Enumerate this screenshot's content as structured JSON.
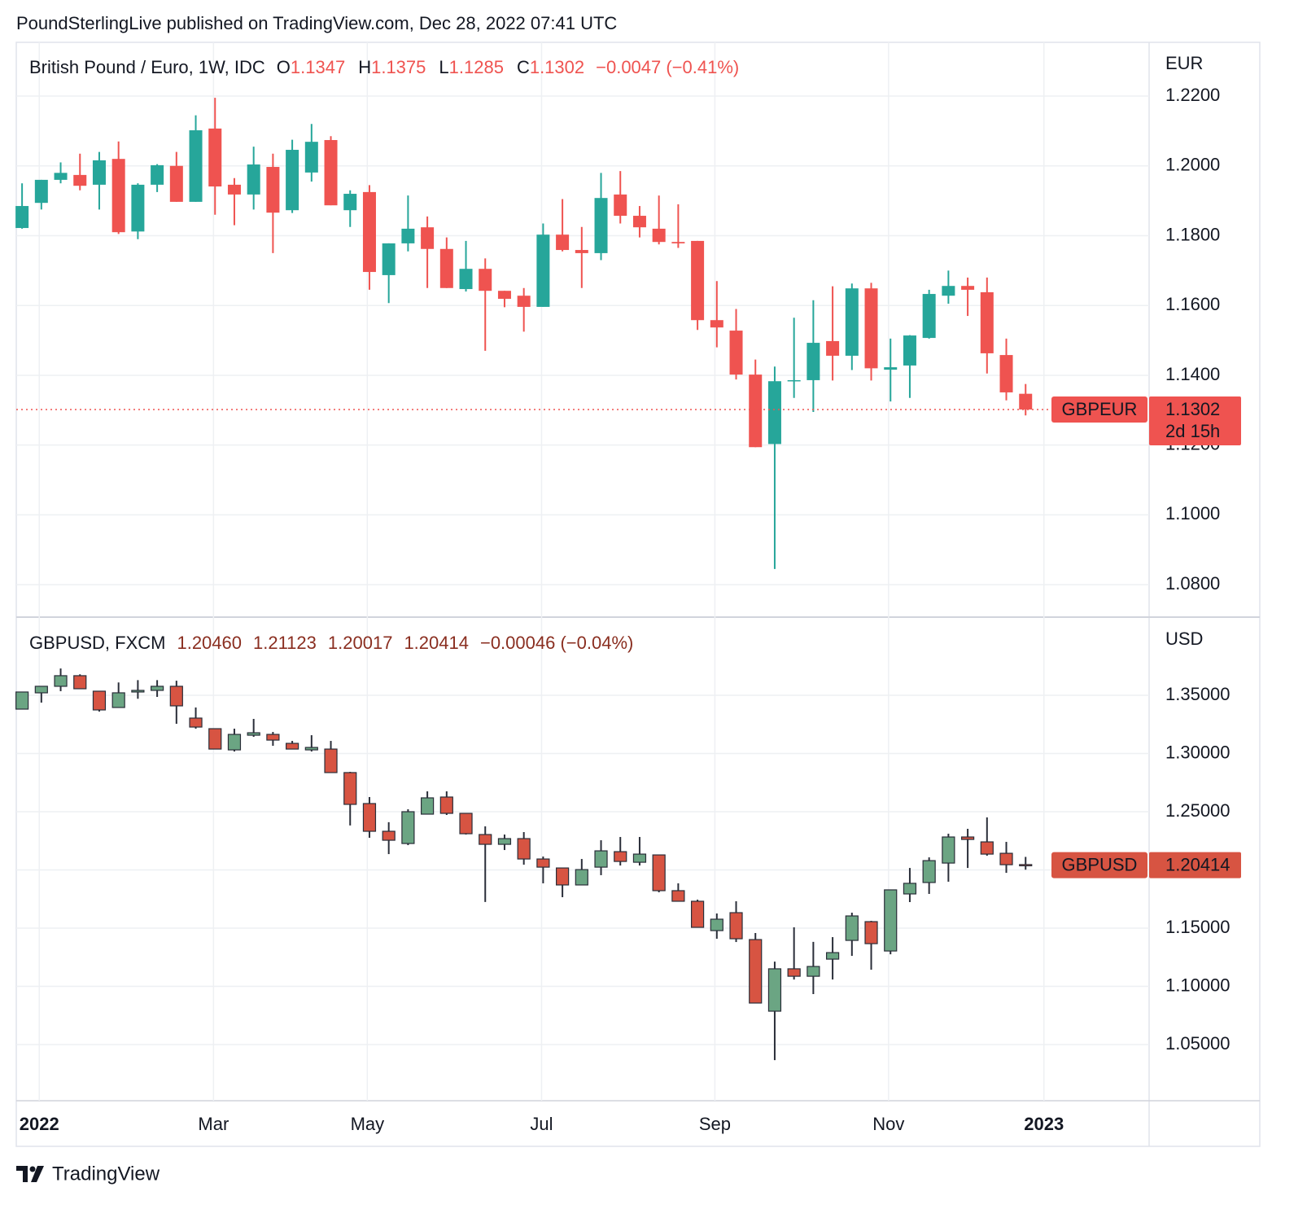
{
  "published": "PoundSterlingLive published on TradingView.com, Dec 28, 2022 07:41 UTC",
  "brand": "TradingView",
  "x_axis": {
    "xlim": [
      -0.3,
      58.4
    ],
    "xticks": [
      {
        "value": 0.89,
        "label": "2022"
      },
      {
        "value": 9.92,
        "label": "Mar"
      },
      {
        "value": 17.89,
        "label": "May"
      },
      {
        "value": 26.92,
        "label": "Jul"
      },
      {
        "value": 35.9,
        "label": "Sep"
      },
      {
        "value": 44.9,
        "label": "Nov"
      },
      {
        "value": 52.95,
        "label": "2023"
      }
    ],
    "bold_labels": [
      "2022",
      "2023"
    ]
  },
  "chart_data": [
    {
      "type": "candlestick",
      "title": "British Pound / Euro, 1W, IDC",
      "unit": "EUR",
      "header_prefixes": [
        "O",
        "H",
        "L",
        "C"
      ],
      "header_values": [
        "1.1347",
        "1.1375",
        "1.1285",
        "1.1302"
      ],
      "change_label": "−0.0047 (−0.41%)",
      "up_color": "#26a69a",
      "down_color": "#ef5350",
      "border": false,
      "last_price": {
        "symbol": "GBPEUR",
        "value_label": "1.1302",
        "countdown": "2d 15h"
      },
      "ylim": [
        1.0707,
        1.2354
      ],
      "yticks": [
        {
          "value": 1.08,
          "label": "1.0800"
        },
        {
          "value": 1.1,
          "label": "1.1000"
        },
        {
          "value": 1.12,
          "label": "1.1200"
        },
        {
          "value": 1.14,
          "label": "1.1400"
        },
        {
          "value": 1.16,
          "label": "1.1600"
        },
        {
          "value": 1.18,
          "label": "1.1800"
        },
        {
          "value": 1.2,
          "label": "1.2000"
        },
        {
          "value": 1.22,
          "label": "1.2200"
        }
      ],
      "open": [
        1.1822,
        1.1894,
        1.196,
        1.1974,
        1.1946,
        1.202,
        1.1812,
        1.1946,
        1.2,
        1.1897,
        1.2107,
        1.1946,
        1.1918,
        1.1997,
        1.1873,
        1.1981,
        1.2074,
        1.1873,
        1.1925,
        1.1687,
        1.1778,
        1.1824,
        1.1762,
        1.1647,
        1.1705,
        1.1642,
        1.1628,
        1.1596,
        1.1803,
        1.1759,
        1.175,
        1.1918,
        1.1857,
        1.182,
        1.1782,
        1.1785,
        1.1558,
        1.1528,
        1.1402,
        1.1203,
        1.1383,
        1.1386,
        1.1498,
        1.1456,
        1.1649,
        1.1416,
        1.1428,
        1.1507,
        1.1628,
        1.1656,
        1.1638,
        1.1458,
        1.1347
      ],
      "high": [
        1.195,
        1.196,
        1.201,
        1.2035,
        1.204,
        1.207,
        1.195,
        1.2005,
        1.204,
        1.2145,
        1.2195,
        1.1965,
        1.2055,
        1.2035,
        1.2075,
        1.212,
        1.2085,
        1.193,
        1.1945,
        1.1778,
        1.1915,
        1.1855,
        1.1795,
        1.1785,
        1.1735,
        1.1642,
        1.165,
        1.1835,
        1.1905,
        1.1825,
        1.198,
        1.1985,
        1.1885,
        1.1915,
        1.189,
        1.1785,
        1.167,
        1.159,
        1.1445,
        1.1425,
        1.1565,
        1.1615,
        1.1655,
        1.1663,
        1.1665,
        1.1505,
        1.1515,
        1.1645,
        1.17,
        1.168,
        1.168,
        1.1505,
        1.1375
      ],
      "low": [
        1.182,
        1.1875,
        1.195,
        1.193,
        1.1875,
        1.1805,
        1.179,
        1.1925,
        1.1897,
        1.1897,
        1.186,
        1.183,
        1.1875,
        1.175,
        1.1865,
        1.1955,
        1.1887,
        1.1825,
        1.1645,
        1.1607,
        1.1755,
        1.165,
        1.165,
        1.164,
        1.147,
        1.1595,
        1.1525,
        1.1596,
        1.1755,
        1.165,
        1.173,
        1.1835,
        1.1795,
        1.1775,
        1.1765,
        1.153,
        1.148,
        1.1388,
        1.1194,
        1.0845,
        1.1335,
        1.1295,
        1.1385,
        1.1415,
        1.1385,
        1.1325,
        1.1335,
        1.1505,
        1.1605,
        1.157,
        1.1405,
        1.1328,
        1.1285
      ],
      "close": [
        1.1885,
        1.196,
        1.198,
        1.1943,
        1.2016,
        1.181,
        1.1946,
        1.2002,
        1.1897,
        1.2102,
        1.1941,
        1.1918,
        1.2004,
        1.1866,
        1.2046,
        1.2069,
        1.1887,
        1.192,
        1.1696,
        1.1778,
        1.182,
        1.1762,
        1.165,
        1.1705,
        1.1642,
        1.1619,
        1.1596,
        1.1803,
        1.1759,
        1.175,
        1.1908,
        1.1857,
        1.1824,
        1.1782,
        1.1778,
        1.1558,
        1.1537,
        1.1402,
        1.1194,
        1.1383,
        1.1386,
        1.1493,
        1.1456,
        1.1649,
        1.142,
        1.1423,
        1.1514,
        1.1633,
        1.1656,
        1.1645,
        1.1463,
        1.1351,
        1.1302
      ]
    },
    {
      "type": "candlestick",
      "title": "GBPUSD, FXCM",
      "unit": "USD",
      "header_values": [
        "1.20460",
        "1.21123",
        "1.20017",
        "1.20414"
      ],
      "change_label": "−0.00046 (−0.04%)",
      "up_color": "#6ba583",
      "down_color": "#d75442",
      "border": true,
      "last_price": {
        "symbol": "GBPUSD",
        "value_label": "1.20414"
      },
      "ylim": [
        1.0018,
        1.4171
      ],
      "yticks": [
        {
          "value": 1.05,
          "label": "1.05000"
        },
        {
          "value": 1.1,
          "label": "1.10000"
        },
        {
          "value": 1.15,
          "label": "1.15000"
        },
        {
          "value": 1.2,
          "label": "1.20000"
        },
        {
          "value": 1.25,
          "label": "1.25000"
        },
        {
          "value": 1.3,
          "label": "1.30000"
        },
        {
          "value": 1.35,
          "label": "1.35000"
        }
      ],
      "open": [
        1.3381,
        1.3521,
        1.3577,
        1.3668,
        1.3535,
        1.3395,
        1.3528,
        1.3542,
        1.3577,
        1.3304,
        1.3213,
        1.3031,
        1.3157,
        1.3164,
        1.3087,
        1.3031,
        1.3038,
        1.2836,
        1.257,
        1.2332,
        1.2227,
        1.2479,
        1.2626,
        1.2486,
        1.2304,
        1.222,
        1.2269,
        1.2094,
        1.2017,
        1.1871,
        1.2024,
        1.2157,
        1.2066,
        1.2129,
        1.1822,
        1.1731,
        1.1479,
        1.1633,
        1.1402,
        1.0787,
        1.1151,
        1.1087,
        1.1234,
        1.1395,
        1.1556,
        1.1304,
        1.1794,
        1.1892,
        1.2059,
        1.2283,
        1.2241,
        1.2143,
        1.2046
      ],
      "high": [
        1.353,
        1.358,
        1.373,
        1.368,
        1.3535,
        1.361,
        1.363,
        1.363,
        1.3625,
        1.3395,
        1.3213,
        1.3213,
        1.3297,
        1.3185,
        1.3108,
        1.3157,
        1.3108,
        1.2843,
        1.2626,
        1.241,
        1.2521,
        1.2675,
        1.2675,
        1.2486,
        1.2374,
        1.2304,
        1.2325,
        1.2115,
        1.2017,
        1.2094,
        1.2255,
        1.2283,
        1.2283,
        1.2129,
        1.1885,
        1.1745,
        1.1626,
        1.1731,
        1.1458,
        1.1213,
        1.1507,
        1.1382,
        1.1423,
        1.1633,
        1.1563,
        1.1829,
        1.2017,
        1.2108,
        1.2311,
        1.2353,
        1.2451,
        1.2241,
        1.2112
      ],
      "low": [
        1.338,
        1.3437,
        1.3535,
        1.3556,
        1.336,
        1.3395,
        1.347,
        1.3486,
        1.3255,
        1.3213,
        1.3038,
        1.3017,
        1.3143,
        1.3066,
        1.3038,
        1.3017,
        1.2836,
        1.2382,
        1.2276,
        1.2136,
        1.2213,
        1.2479,
        1.2472,
        1.2304,
        1.1725,
        1.2171,
        1.2045,
        1.1885,
        1.1766,
        1.1871,
        1.1955,
        1.2038,
        1.2038,
        1.1808,
        1.1731,
        1.1507,
        1.1409,
        1.1381,
        1.0857,
        1.0367,
        1.1059,
        1.0934,
        1.1059,
        1.1262,
        1.1143,
        1.1276,
        1.1724,
        1.1794,
        1.1899,
        1.2017,
        1.2122,
        1.1975,
        1.2002
      ],
      "close": [
        1.3528,
        1.3577,
        1.3668,
        1.3556,
        1.3374,
        1.3521,
        1.3542,
        1.3577,
        1.3409,
        1.3227,
        1.3038,
        1.3164,
        1.3178,
        1.3115,
        1.3038,
        1.3052,
        1.2836,
        1.2563,
        1.2332,
        1.2255,
        1.25,
        1.2619,
        1.2486,
        1.2311,
        1.222,
        1.2269,
        1.2094,
        1.2024,
        1.1871,
        1.2003,
        1.2164,
        1.2073,
        1.2136,
        1.1822,
        1.1731,
        1.1507,
        1.1577,
        1.1409,
        1.0857,
        1.1151,
        1.1087,
        1.1171,
        1.129,
        1.1605,
        1.1367,
        1.1829,
        1.1885,
        1.208,
        1.2283,
        1.2262,
        1.2136,
        1.2045,
        1.20414
      ]
    }
  ]
}
